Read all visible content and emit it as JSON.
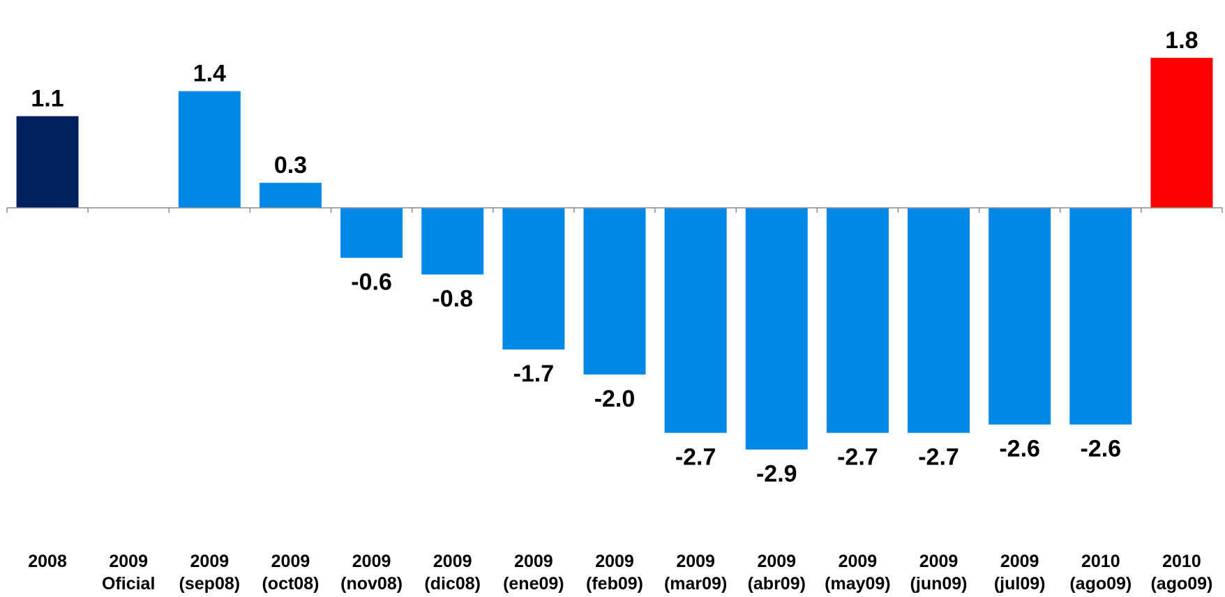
{
  "chart_data": {
    "type": "bar",
    "categories": [
      [
        "2008",
        ""
      ],
      [
        "2009",
        "Oficial"
      ],
      [
        "2009",
        "(sep08)"
      ],
      [
        "2009",
        "(oct08)"
      ],
      [
        "2009",
        "(nov08)"
      ],
      [
        "2009",
        "(dic08)"
      ],
      [
        "2009",
        "(ene09)"
      ],
      [
        "2009",
        "(feb09)"
      ],
      [
        "2009",
        "(mar09)"
      ],
      [
        "2009",
        "(abr09)"
      ],
      [
        "2009",
        "(may09)"
      ],
      [
        "2009",
        "(jun09)"
      ],
      [
        "2009",
        "(jul09)"
      ],
      [
        "2010",
        "(ago09)"
      ],
      [
        "2010",
        "(ago09)"
      ]
    ],
    "values": [
      1.1,
      null,
      1.4,
      0.3,
      -0.6,
      -0.8,
      -1.7,
      -2.0,
      -2.7,
      -2.9,
      -2.7,
      -2.7,
      -2.6,
      -2.6,
      1.8
    ],
    "value_labels": [
      "1.1",
      "",
      "1.4",
      "0.3",
      "-0.6",
      "-0.8",
      "-1.7",
      "-2.0",
      "-2.7",
      "-2.9",
      "-2.7",
      "-2.7",
      "-2.6",
      "-2.6",
      "1.8"
    ],
    "colors": [
      "#002060",
      "#0088e8",
      "#0088e8",
      "#0088e8",
      "#0088e8",
      "#0088e8",
      "#0088e8",
      "#0088e8",
      "#0088e8",
      "#0088e8",
      "#0088e8",
      "#0088e8",
      "#0088e8",
      "#0088e8",
      "#ff0000"
    ],
    "ylim": [
      -3.2,
      2.0
    ],
    "grid": false,
    "legend": "none",
    "title": "",
    "xlabel": "",
    "ylabel": ""
  }
}
